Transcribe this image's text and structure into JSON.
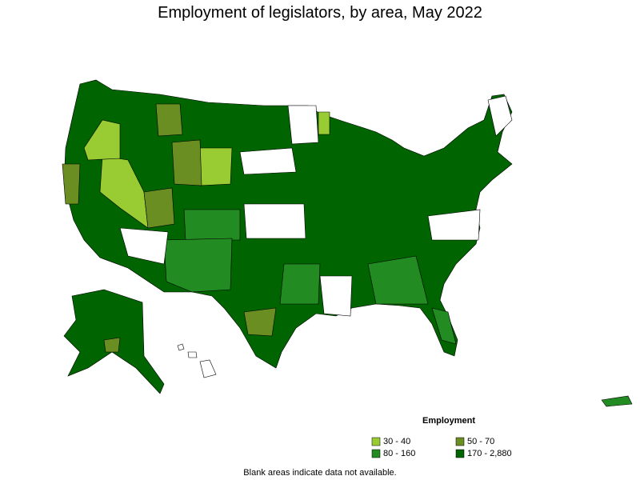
{
  "title": "Employment of legislators, by area, May 2022",
  "legend": {
    "title": "Employment",
    "items": [
      {
        "label": "30 - 40",
        "color": "#99cc33"
      },
      {
        "label": "50 - 70",
        "color": "#6b8e23"
      },
      {
        "label": "80 - 160",
        "color": "#228b22"
      },
      {
        "label": "170 - 2,880",
        "color": "#006400"
      }
    ]
  },
  "note": "Blank areas indicate data not available."
}
